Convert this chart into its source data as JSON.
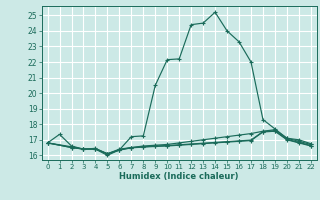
{
  "xlabel": "Humidex (Indice chaleur)",
  "bg_color": "#cce9e6",
  "grid_color": "#ffffff",
  "line_color": "#1a6b5a",
  "xlim": [
    -0.5,
    22.5
  ],
  "ylim": [
    15.7,
    25.6
  ],
  "yticks": [
    16,
    17,
    18,
    19,
    20,
    21,
    22,
    23,
    24,
    25
  ],
  "xticks": [
    0,
    1,
    2,
    3,
    4,
    5,
    6,
    7,
    8,
    9,
    10,
    11,
    12,
    13,
    14,
    15,
    16,
    17,
    18,
    19,
    20,
    21,
    22
  ],
  "curves": [
    {
      "x": [
        0,
        1,
        2,
        3,
        4,
        5,
        6,
        7,
        8,
        9,
        10,
        11,
        12,
        13,
        14,
        15,
        16,
        17,
        18,
        19,
        20,
        21,
        22
      ],
      "y": [
        16.8,
        17.35,
        16.6,
        16.4,
        16.4,
        16.0,
        16.35,
        17.2,
        17.25,
        20.5,
        22.15,
        22.2,
        24.4,
        24.5,
        25.2,
        24.0,
        23.3,
        22.0,
        18.3,
        17.7,
        17.1,
        16.9,
        16.7
      ]
    },
    {
      "x": [
        0,
        2,
        3,
        4,
        5,
        6,
        7,
        8,
        9,
        10,
        11,
        12,
        13,
        14,
        15,
        16,
        17,
        18,
        19,
        20,
        21,
        22
      ],
      "y": [
        16.8,
        16.55,
        16.4,
        16.45,
        16.1,
        16.4,
        16.5,
        16.6,
        16.65,
        16.7,
        16.8,
        16.9,
        17.0,
        17.1,
        17.2,
        17.3,
        17.4,
        17.55,
        17.65,
        17.1,
        17.0,
        16.75
      ]
    },
    {
      "x": [
        0,
        2,
        3,
        4,
        5,
        6,
        7,
        8,
        9,
        10,
        11,
        12,
        13,
        14,
        15,
        16,
        17,
        18,
        19,
        20,
        21,
        22
      ],
      "y": [
        16.8,
        16.5,
        16.4,
        16.4,
        16.1,
        16.35,
        16.5,
        16.55,
        16.6,
        16.63,
        16.68,
        16.73,
        16.78,
        16.83,
        16.88,
        16.93,
        16.98,
        17.53,
        17.58,
        17.03,
        16.83,
        16.63
      ]
    },
    {
      "x": [
        0,
        2,
        3,
        4,
        5,
        6,
        7,
        8,
        9,
        10,
        11,
        12,
        13,
        14,
        15,
        16,
        17,
        18,
        19,
        20,
        21,
        22
      ],
      "y": [
        16.8,
        16.5,
        16.4,
        16.42,
        16.1,
        16.33,
        16.48,
        16.53,
        16.57,
        16.6,
        16.65,
        16.7,
        16.75,
        16.8,
        16.85,
        16.9,
        16.95,
        17.5,
        17.55,
        17.0,
        16.8,
        16.6
      ]
    }
  ]
}
